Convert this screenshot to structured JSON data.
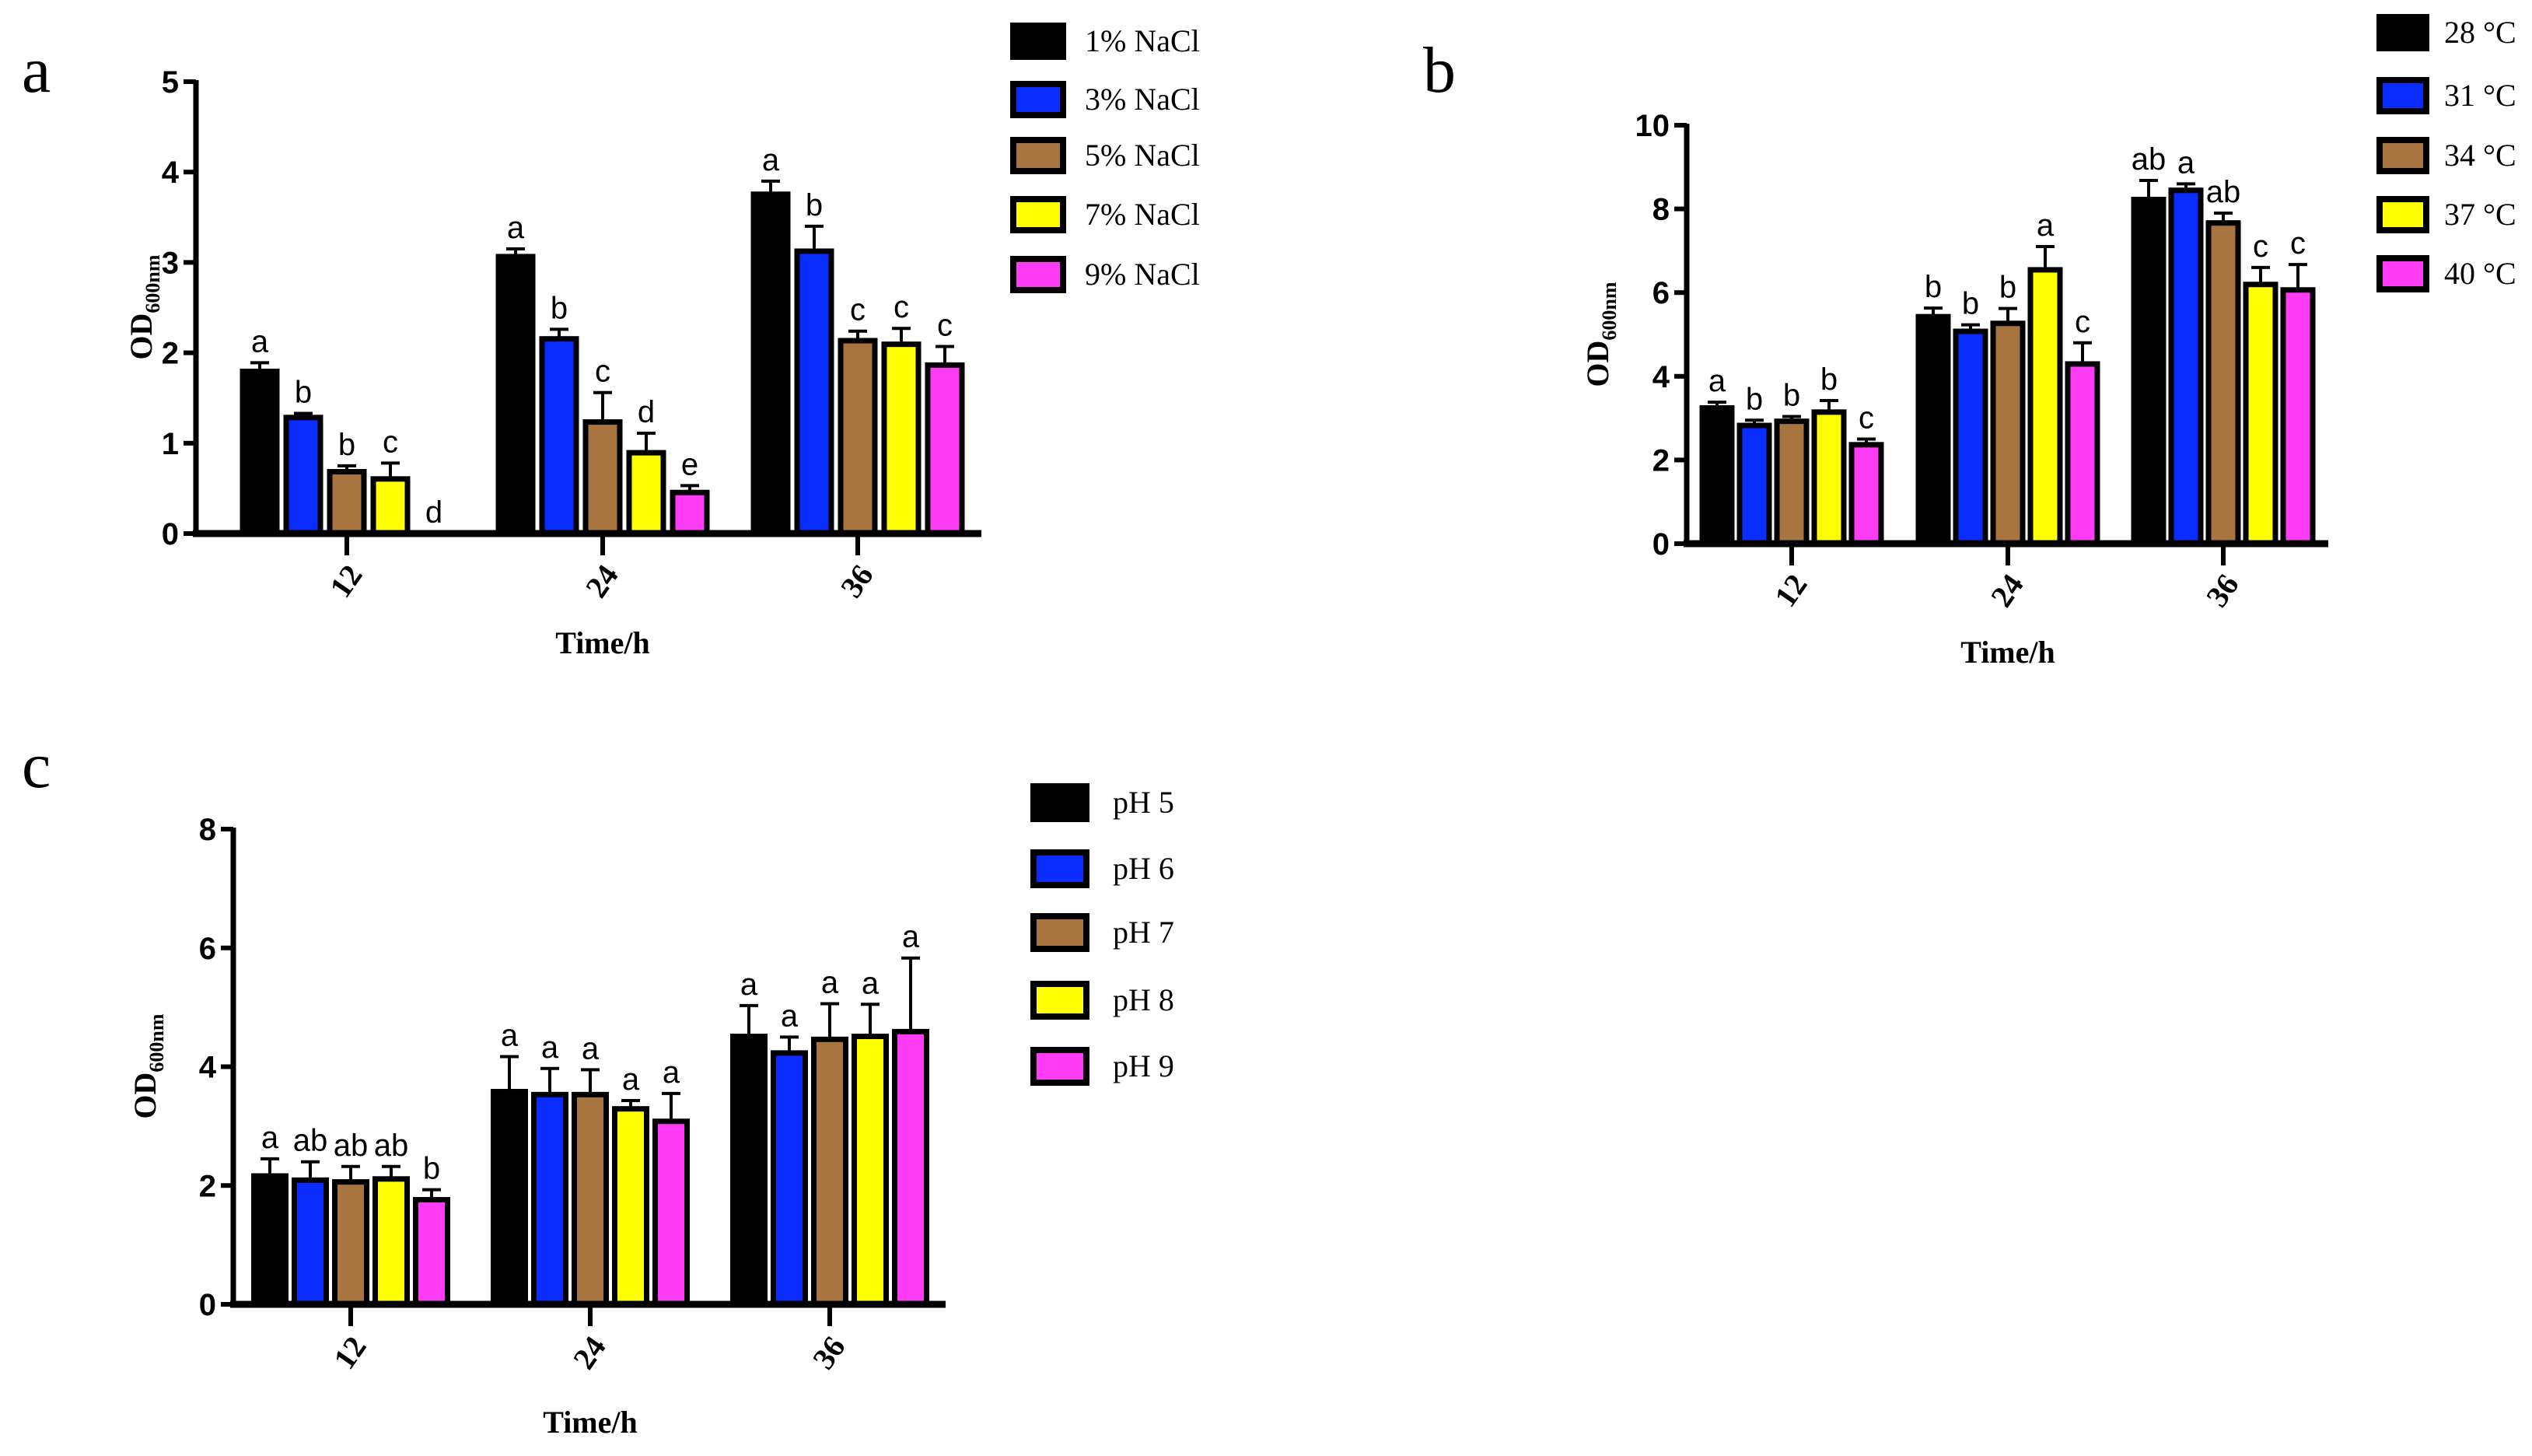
{
  "colors": [
    "#000000",
    "#0a2cff",
    "#a8743f",
    "#ffff00",
    "#ff3cf5"
  ],
  "chart_data": [
    {
      "type": "bar",
      "panel": "a",
      "title": "",
      "xlabel": "Time/h",
      "ylabel_main": "OD",
      "ylabel_sub": "600nm",
      "categories": [
        "12",
        "24",
        "36"
      ],
      "ylim": [
        0,
        5
      ],
      "yticks": [
        0,
        1,
        2,
        3,
        4,
        5
      ],
      "legend_position": "top-right",
      "series": [
        {
          "name": "1% NaCl",
          "values": [
            1.82,
            3.09,
            3.78
          ],
          "errors": [
            0.07,
            0.06,
            0.12
          ],
          "letters": [
            "a",
            "a",
            "a"
          ]
        },
        {
          "name": "3% NaCl",
          "values": [
            1.31,
            2.18,
            3.15
          ],
          "errors": [
            0.02,
            0.08,
            0.25
          ],
          "letters": [
            "b",
            "b",
            "b"
          ]
        },
        {
          "name": "5% NaCl",
          "values": [
            0.71,
            1.26,
            2.16
          ],
          "errors": [
            0.04,
            0.3,
            0.08
          ],
          "letters": [
            "b",
            "c",
            "c"
          ]
        },
        {
          "name": "7% NaCl",
          "values": [
            0.63,
            0.92,
            2.12
          ],
          "errors": [
            0.15,
            0.19,
            0.15
          ],
          "letters": [
            "c",
            "d",
            "c"
          ]
        },
        {
          "name": "9% NaCl",
          "values": [
            0.0,
            0.48,
            1.89
          ],
          "errors": [
            0.0,
            0.05,
            0.18
          ],
          "letters": [
            "d",
            "e",
            "c"
          ]
        }
      ]
    },
    {
      "type": "bar",
      "panel": "b",
      "title": "",
      "xlabel": "Time/h",
      "ylabel_main": "OD",
      "ylabel_sub": "600nm",
      "categories": [
        "12",
        "24",
        "36"
      ],
      "ylim": [
        0,
        10
      ],
      "yticks": [
        0,
        2,
        4,
        6,
        8,
        10
      ],
      "legend_position": "top-right",
      "series": [
        {
          "name": "28 °C",
          "values": [
            3.3,
            5.48,
            8.28
          ],
          "errors": [
            0.08,
            0.15,
            0.4
          ],
          "letters": [
            "a",
            "b",
            "ab"
          ]
        },
        {
          "name": "31 °C",
          "values": [
            2.88,
            5.13,
            8.5
          ],
          "errors": [
            0.07,
            0.1,
            0.1
          ],
          "letters": [
            "b",
            "b",
            "a"
          ]
        },
        {
          "name": "34 °C",
          "values": [
            2.98,
            5.32,
            7.72
          ],
          "errors": [
            0.06,
            0.3,
            0.18
          ],
          "letters": [
            "b",
            "b",
            "ab"
          ]
        },
        {
          "name": "37 °C",
          "values": [
            3.2,
            6.6,
            6.25
          ],
          "errors": [
            0.22,
            0.5,
            0.35
          ],
          "letters": [
            "b",
            "a",
            "c"
          ]
        },
        {
          "name": "40 °C",
          "values": [
            2.42,
            4.35,
            6.12
          ],
          "errors": [
            0.08,
            0.45,
            0.55
          ],
          "letters": [
            "c",
            "c",
            "c"
          ]
        }
      ]
    },
    {
      "type": "bar",
      "panel": "c",
      "title": "",
      "xlabel": "Time/h",
      "ylabel_main": "OD",
      "ylabel_sub": "600nm",
      "categories": [
        "12",
        "24",
        "36"
      ],
      "ylim": [
        0,
        8
      ],
      "yticks": [
        0,
        2,
        4,
        6,
        8
      ],
      "legend_position": "top-right",
      "series": [
        {
          "name": "pH 5",
          "values": [
            2.2,
            3.62,
            4.55
          ],
          "errors": [
            0.25,
            0.55,
            0.48
          ],
          "letters": [
            "a",
            "a",
            "a"
          ]
        },
        {
          "name": "pH 6",
          "values": [
            2.13,
            3.57,
            4.27
          ],
          "errors": [
            0.27,
            0.4,
            0.23
          ],
          "letters": [
            "ab",
            "a",
            "a"
          ]
        },
        {
          "name": "pH 7",
          "values": [
            2.1,
            3.57,
            4.5
          ],
          "errors": [
            0.22,
            0.38,
            0.56
          ],
          "letters": [
            "ab",
            "a",
            "a"
          ]
        },
        {
          "name": "pH 8",
          "values": [
            2.15,
            3.33,
            4.55
          ],
          "errors": [
            0.17,
            0.1,
            0.5
          ],
          "letters": [
            "ab",
            "a",
            "a"
          ]
        },
        {
          "name": "pH 9",
          "values": [
            1.8,
            3.12,
            4.63
          ],
          "errors": [
            0.13,
            0.43,
            1.2
          ],
          "letters": [
            "b",
            "a",
            "a"
          ]
        }
      ]
    }
  ]
}
